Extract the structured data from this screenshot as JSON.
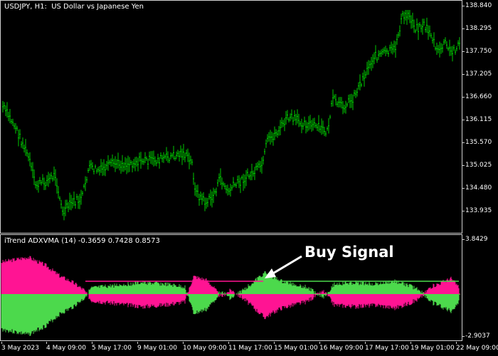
{
  "main_chart": {
    "title": "USDJPY, H1:  US Dollar vs Japanese Yen",
    "price_labels": [
      "138.840",
      "138.295",
      "137.750",
      "137.205",
      "136.660",
      "136.115",
      "135.570",
      "135.025",
      "134.480",
      "133.935"
    ],
    "candle_color": "#00c800"
  },
  "indicator": {
    "title": "iTrend ADXVMA (14) -0.3659 0.7428 0.8573",
    "scale_top": "3.8429",
    "scale_bottom": "-2.9037",
    "positive_color": "#ff1493",
    "negative_color": "#4cd94c"
  },
  "annotation": {
    "label": "Buy Signal"
  },
  "time_labels": [
    "3 May 2023",
    "4 May 09:00",
    "5 May 17:00",
    "9 May 01:00",
    "10 May 09:00",
    "11 May 17:00",
    "15 May 01:00",
    "16 May 09:00",
    "17 May 17:00",
    "19 May 01:00",
    "22 May 09:00"
  ]
}
